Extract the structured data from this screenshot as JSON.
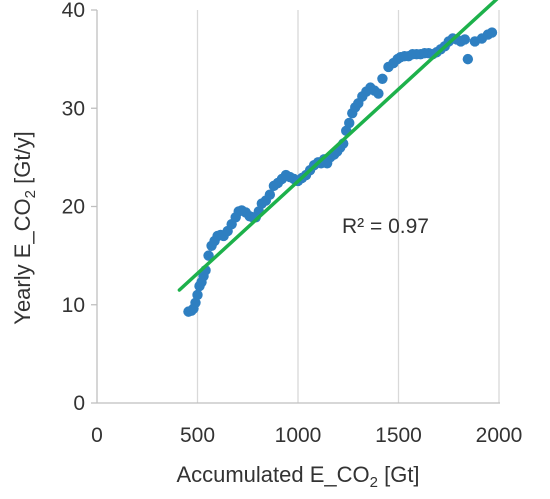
{
  "chart_data": {
    "type": "scatter",
    "title": "",
    "xlabel": {
      "main": "Accumulated E_CO",
      "sub": "2",
      "tail": " [Gt]"
    },
    "ylabel": {
      "main": "Yearly E_CO",
      "sub": "2",
      "tail": " [Gt/y]"
    },
    "xlim": [
      0,
      2000
    ],
    "ylim": [
      0,
      40
    ],
    "xticks": [
      0,
      500,
      1000,
      1500,
      2000
    ],
    "yticks": [
      0,
      10,
      20,
      30,
      40
    ],
    "grid": "vertical",
    "marker_color": "#2E7FC1",
    "trendline_color": "#1DB14B",
    "annotation": "R² = 0.97",
    "trendline": {
      "x": [
        410,
        2010
      ],
      "y": [
        11.5,
        41.5
      ]
    },
    "points": {
      "x": [
        455,
        470,
        480,
        490,
        500,
        510,
        520,
        530,
        540,
        555,
        570,
        585,
        600,
        615,
        630,
        650,
        670,
        690,
        705,
        720,
        740,
        760,
        775,
        790,
        805,
        820,
        840,
        860,
        880,
        900,
        920,
        940,
        960,
        980,
        1000,
        1020,
        1040,
        1060,
        1080,
        1100,
        1115,
        1130,
        1145,
        1160,
        1180,
        1195,
        1210,
        1225,
        1240,
        1255,
        1270,
        1285,
        1300,
        1320,
        1340,
        1360,
        1380,
        1400,
        1420,
        1450,
        1475,
        1495,
        1510,
        1530,
        1550,
        1570,
        1590,
        1610,
        1630,
        1650,
        1670,
        1690,
        1710,
        1730,
        1750,
        1770,
        1790,
        1810,
        1830,
        1845,
        1880,
        1915,
        1945,
        1965
      ],
      "y": [
        9.3,
        9.4,
        9.6,
        10.2,
        11.0,
        11.9,
        12.3,
        12.9,
        13.5,
        15.0,
        16.0,
        16.5,
        17.0,
        17.1,
        17.0,
        17.5,
        18.2,
        18.9,
        19.5,
        19.6,
        19.4,
        19.0,
        18.9,
        18.9,
        19.5,
        20.3,
        20.6,
        21.2,
        22.1,
        22.4,
        22.8,
        23.2,
        23.0,
        22.8,
        22.6,
        22.9,
        23.2,
        23.7,
        24.2,
        24.5,
        24.4,
        24.8,
        24.4,
        25.0,
        25.3,
        25.6,
        26.0,
        26.4,
        27.7,
        28.5,
        29.5,
        30.1,
        30.5,
        31.2,
        31.7,
        32.1,
        31.8,
        31.5,
        33.0,
        34.2,
        34.6,
        35.0,
        35.2,
        35.3,
        35.3,
        35.5,
        35.5,
        35.5,
        35.6,
        35.6,
        35.5,
        35.7,
        36.0,
        36.3,
        36.8,
        37.1,
        37.0,
        36.8,
        37.0,
        35.0,
        36.8,
        37.1,
        37.5,
        37.7
      ]
    }
  }
}
